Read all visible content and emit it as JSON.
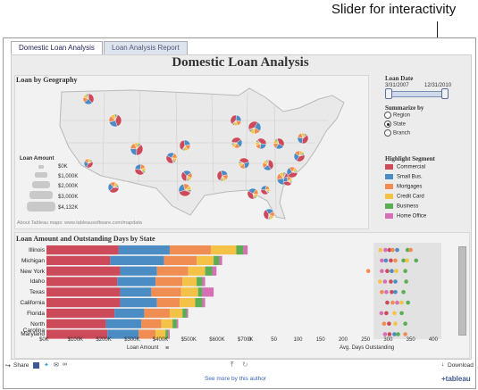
{
  "annotation": "Slider for interactivity",
  "tabs": [
    "Domestic Loan Analysis",
    "Loan Analysis Report"
  ],
  "dashboard_title": "Domestic Loan Analysis",
  "map_section": {
    "title": "Loan by Geography",
    "credit": "About Tableau maps: www.tableausoftware.com/mapdata",
    "size_legend_title": "Loan Amount",
    "size_legend": [
      "$0K",
      "$1,000K",
      "$2,000K",
      "$3,000K",
      "$4,132K"
    ]
  },
  "loan_date": {
    "title": "Loan Date",
    "start": "3/31/2007",
    "end": "12/31/2010"
  },
  "summarize": {
    "title": "Summarize by",
    "options": [
      "Region",
      "State",
      "Branch"
    ],
    "selected": "State"
  },
  "segment": {
    "title": "Highlight Segment",
    "items": [
      {
        "label": "Commercial",
        "color": "#cd4a5b"
      },
      {
        "label": "Small Bus.",
        "color": "#4c8cc4"
      },
      {
        "label": "Mortgages",
        "color": "#f08d52"
      },
      {
        "label": "Credit Card",
        "color": "#f4c247"
      },
      {
        "label": "Business",
        "color": "#5bae54"
      },
      {
        "label": "Home Office",
        "color": "#d66fb4"
      }
    ]
  },
  "bottom_section": {
    "title": "Loan Amount and Outstanding Days by State"
  },
  "chart_data": [
    {
      "type": "bar",
      "stacked": true,
      "categories": [
        "Illinois",
        "Michigan",
        "New York",
        "Idaho",
        "Texas",
        "California",
        "Florida",
        "North Carolina",
        "Maryland"
      ],
      "series": [
        {
          "name": "Commercial",
          "values": [
            255,
            225,
            260,
            250,
            260,
            260,
            240,
            210,
            215
          ]
        },
        {
          "name": "Small Bus.",
          "values": [
            180,
            190,
            130,
            135,
            110,
            130,
            105,
            125,
            110
          ]
        },
        {
          "name": "Mortgages",
          "values": [
            145,
            115,
            110,
            95,
            105,
            80,
            90,
            70,
            60
          ]
        },
        {
          "name": "Credit Card",
          "values": [
            90,
            60,
            60,
            50,
            60,
            55,
            45,
            40,
            35
          ]
        },
        {
          "name": "Business",
          "values": [
            25,
            20,
            25,
            20,
            15,
            25,
            15,
            15,
            10
          ]
        },
        {
          "name": "Home Office",
          "values": [
            15,
            10,
            15,
            10,
            40,
            10,
            5,
            5,
            5
          ]
        }
      ],
      "xlabel": "Loan Amount",
      "xticks": [
        "$0K",
        "$100K",
        "$200K",
        "$300K",
        "$400K",
        "$500K",
        "$600K",
        "$700K"
      ],
      "xlim": [
        0,
        700
      ]
    },
    {
      "type": "scatter",
      "xlabel": "Avg. Days Outstanding",
      "xticks": [
        "0",
        "50",
        "100",
        "150",
        "200",
        "250",
        "300",
        "350",
        "400"
      ],
      "xlim": [
        0,
        420
      ],
      "points": [
        {
          "series": "Credit Card",
          "row": 0,
          "x": 285
        },
        {
          "series": "Home Office",
          "row": 0,
          "x": 296
        },
        {
          "series": "Commercial",
          "row": 0,
          "x": 305
        },
        {
          "series": "Mortgages",
          "row": 0,
          "x": 312
        },
        {
          "series": "Small Bus.",
          "row": 0,
          "x": 322
        },
        {
          "series": "Business",
          "row": 0,
          "x": 345
        },
        {
          "series": "Mortgages",
          "row": 0,
          "x": 352
        },
        {
          "series": "Home Office",
          "row": 1,
          "x": 288
        },
        {
          "series": "Small Bus.",
          "row": 1,
          "x": 297
        },
        {
          "series": "Commercial",
          "row": 1,
          "x": 308
        },
        {
          "series": "Mortgages",
          "row": 1,
          "x": 318
        },
        {
          "series": "Business",
          "row": 1,
          "x": 336
        },
        {
          "series": "Credit Card",
          "row": 1,
          "x": 344
        },
        {
          "series": "Business",
          "row": 1,
          "x": 364
        },
        {
          "series": "Mortgages",
          "row": 2,
          "x": 258
        },
        {
          "series": "Home Office",
          "row": 2,
          "x": 288
        },
        {
          "series": "Commercial",
          "row": 2,
          "x": 300
        },
        {
          "series": "Small Bus.",
          "row": 2,
          "x": 310
        },
        {
          "series": "Credit Card",
          "row": 2,
          "x": 320
        },
        {
          "series": "Business",
          "row": 2,
          "x": 340
        },
        {
          "series": "Credit Card",
          "row": 3,
          "x": 284
        },
        {
          "series": "Home Office",
          "row": 3,
          "x": 295
        },
        {
          "series": "Commercial",
          "row": 3,
          "x": 308
        },
        {
          "series": "Small Bus.",
          "row": 3,
          "x": 318
        },
        {
          "series": "Business",
          "row": 3,
          "x": 342
        },
        {
          "series": "Mortgages",
          "row": 4,
          "x": 288
        },
        {
          "series": "Home Office",
          "row": 4,
          "x": 298
        },
        {
          "series": "Commercial",
          "row": 4,
          "x": 310
        },
        {
          "series": "Small Bus.",
          "row": 4,
          "x": 318
        },
        {
          "series": "Business",
          "row": 4,
          "x": 336
        },
        {
          "series": "Commercial",
          "row": 5,
          "x": 300
        },
        {
          "series": "Mortgages",
          "row": 5,
          "x": 312
        },
        {
          "series": "Home Office",
          "row": 5,
          "x": 322
        },
        {
          "series": "Credit Card",
          "row": 5,
          "x": 332
        },
        {
          "series": "Business",
          "row": 5,
          "x": 346
        },
        {
          "series": "Home Office",
          "row": 6,
          "x": 287
        },
        {
          "series": "Commercial",
          "row": 6,
          "x": 298
        },
        {
          "series": "Credit Card",
          "row": 6,
          "x": 316
        },
        {
          "series": "Business",
          "row": 6,
          "x": 332
        },
        {
          "series": "Mortgages",
          "row": 7,
          "x": 293
        },
        {
          "series": "Commercial",
          "row": 7,
          "x": 304
        },
        {
          "series": "Credit Card",
          "row": 7,
          "x": 318
        },
        {
          "series": "Business",
          "row": 7,
          "x": 340
        },
        {
          "series": "Home Office",
          "row": 8,
          "x": 295
        },
        {
          "series": "Commercial",
          "row": 8,
          "x": 305
        },
        {
          "series": "Small Bus.",
          "row": 8,
          "x": 316
        },
        {
          "series": "Business",
          "row": 8,
          "x": 324
        },
        {
          "series": "Mortgages",
          "row": 8,
          "x": 340
        }
      ]
    }
  ],
  "toolbar": {
    "share": "Share",
    "download": "Download"
  },
  "footer": {
    "link": "See more by this author",
    "brand": "+tableau"
  }
}
